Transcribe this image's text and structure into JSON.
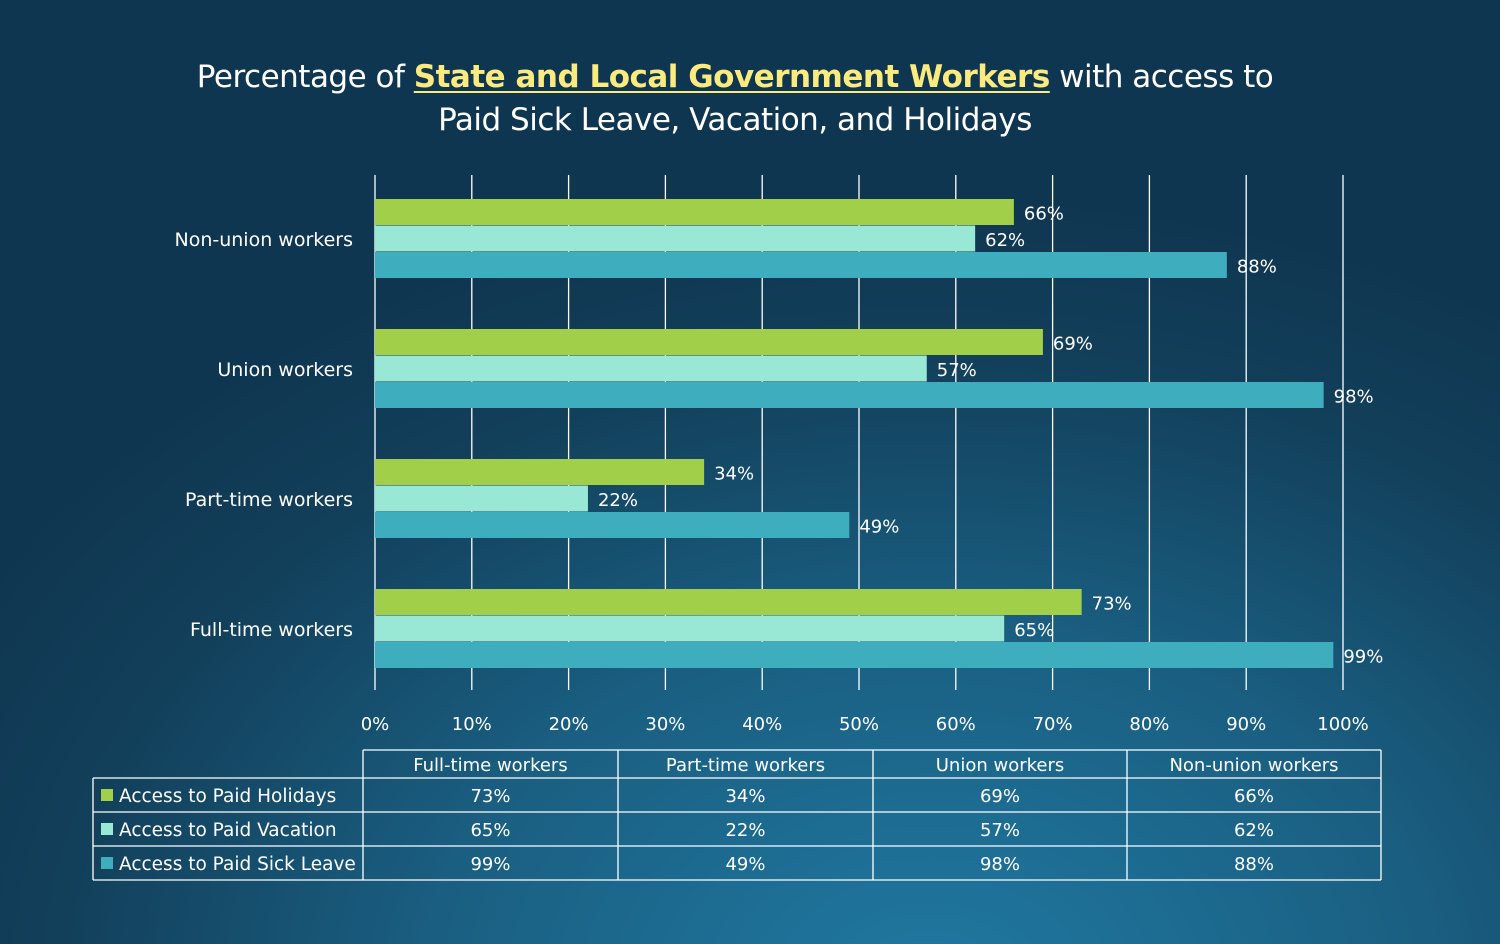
{
  "title": {
    "prefix": "Percentage of ",
    "highlight": "State and Local Government Workers",
    "suffix": " with access to",
    "line2": "Paid Sick Leave, Vacation, and Holidays"
  },
  "chart_data": {
    "type": "bar",
    "orientation": "horizontal",
    "title": "Percentage of State and Local Government Workers with access to Paid Sick Leave, Vacation, and Holidays",
    "categories": [
      "Full-time workers",
      "Part-time workers",
      "Union workers",
      "Non-union workers"
    ],
    "series": [
      {
        "name": "Access to Paid Holidays",
        "color": "#a2cf4a",
        "values": [
          73,
          34,
          69,
          66
        ]
      },
      {
        "name": "Access to Paid Vacation",
        "color": "#98e8d5",
        "values": [
          65,
          22,
          57,
          62
        ]
      },
      {
        "name": "Access to Paid Sick Leave",
        "color": "#3eadbd",
        "values": [
          99,
          49,
          98,
          88
        ]
      }
    ],
    "xlim": [
      0,
      100
    ],
    "x_ticks": [
      "0%",
      "10%",
      "20%",
      "30%",
      "40%",
      "50%",
      "60%",
      "70%",
      "80%",
      "90%",
      "100%"
    ],
    "value_suffix": "%",
    "grid": true,
    "legend": "data-table-below"
  },
  "colors": {
    "highlight_title": "#fbeb7f",
    "grid": "#ffffff"
  }
}
